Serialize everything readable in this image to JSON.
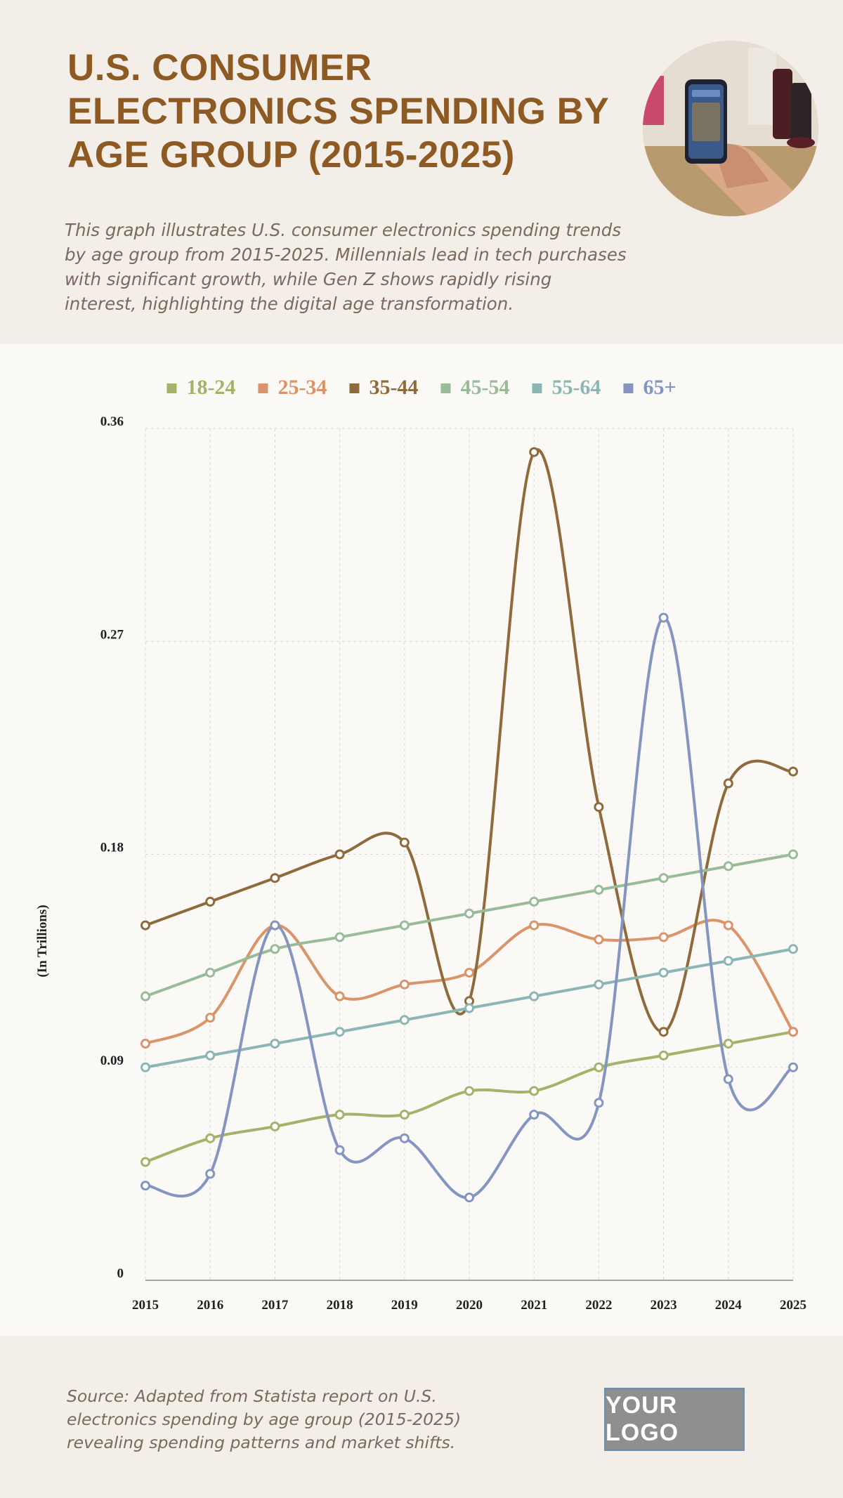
{
  "header": {
    "title": "U.S. CONSUMER ELECTRONICS SPENDING BY AGE GROUP (2015-2025)",
    "subtitle": "This graph illustrates U.S. consumer electronics spending trends by age group from 2015-2025. Millennials lead in tech purchases with significant growth, while Gen Z shows rapidly rising interest, highlighting the digital age transformation."
  },
  "footer": {
    "source": "Source: Adapted from Statista report on U.S. electronics spending by age group (2015-2025) revealing spending patterns and market shifts.",
    "logo_text": "YOUR LOGO"
  },
  "chart_data": {
    "type": "line",
    "title": "",
    "xlabel": "",
    "ylabel": "(In Trillions)",
    "x": [
      "2015",
      "2016",
      "2017",
      "2018",
      "2019",
      "2020",
      "2021",
      "2022",
      "2023",
      "2024",
      "2025"
    ],
    "ylim": [
      0,
      0.36
    ],
    "yticks": [
      "0",
      "0.09",
      "0.18",
      "0.27",
      "0.36"
    ],
    "grid": true,
    "legend": "top",
    "series": [
      {
        "name": "18-24",
        "color": "#a3b36a",
        "values": [
          0.05,
          0.06,
          0.065,
          0.07,
          0.07,
          0.08,
          0.08,
          0.09,
          0.095,
          0.1,
          0.105
        ]
      },
      {
        "name": "25-34",
        "color": "#d9946a",
        "values": [
          0.1,
          0.111,
          0.15,
          0.12,
          0.125,
          0.13,
          0.15,
          0.144,
          0.145,
          0.15,
          0.105
        ]
      },
      {
        "name": "35-44",
        "color": "#8f6a3a",
        "values": [
          0.15,
          0.16,
          0.17,
          0.18,
          0.185,
          0.118,
          0.35,
          0.2,
          0.105,
          0.21,
          0.215
        ]
      },
      {
        "name": "45-54",
        "color": "#98bb98",
        "values": [
          0.12,
          0.13,
          0.14,
          0.145,
          0.15,
          0.155,
          0.16,
          0.165,
          0.17,
          0.175,
          0.18
        ]
      },
      {
        "name": "55-64",
        "color": "#8cb5b5",
        "values": [
          0.09,
          0.095,
          0.1,
          0.105,
          0.11,
          0.115,
          0.12,
          0.125,
          0.13,
          0.135,
          0.14
        ]
      },
      {
        "name": "65+",
        "color": "#8495c0",
        "values": [
          0.04,
          0.045,
          0.15,
          0.055,
          0.06,
          0.035,
          0.07,
          0.075,
          0.28,
          0.085,
          0.09
        ]
      }
    ]
  }
}
